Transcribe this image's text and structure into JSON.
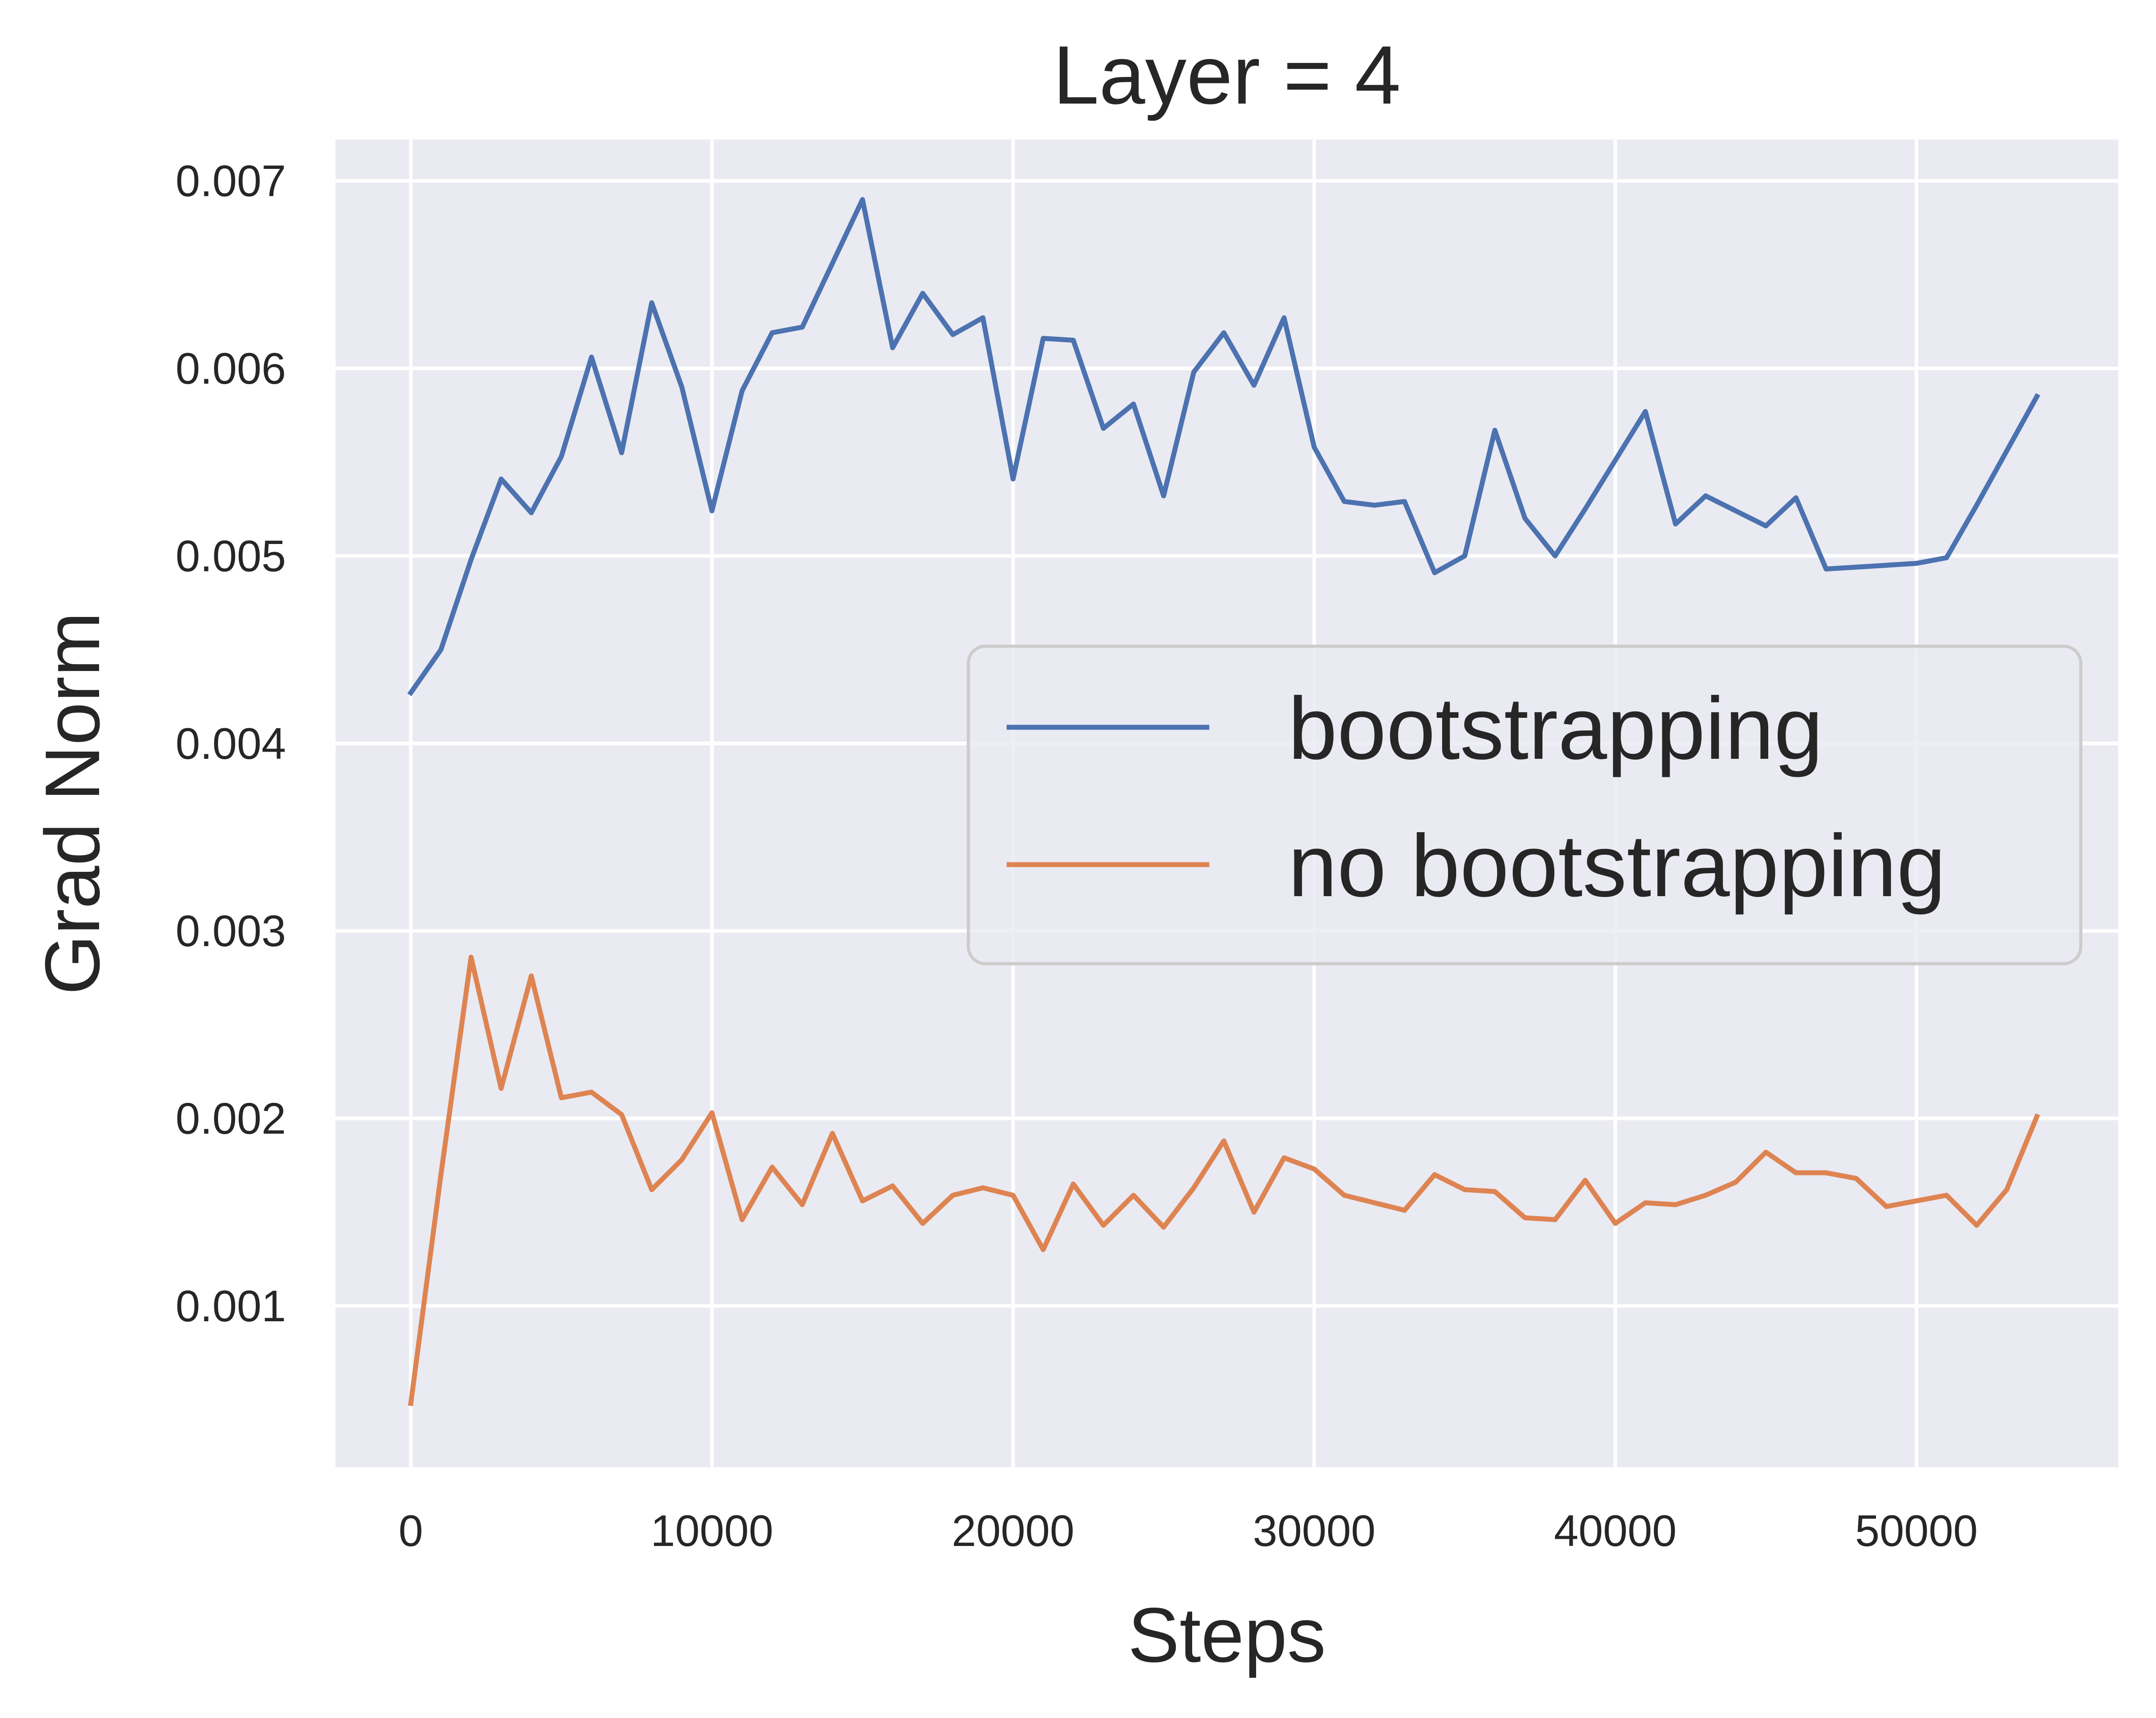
{
  "chart_data": {
    "type": "line",
    "title": "Layer = 4",
    "xlabel": "Steps",
    "ylabel": "Grad Norm",
    "xlim": [
      -2500,
      56700
    ],
    "ylim": [
      0.00014,
      0.00722
    ],
    "xticks": [
      0,
      10000,
      20000,
      30000,
      40000,
      50000
    ],
    "xtick_labels": [
      "0",
      "10000",
      "20000",
      "30000",
      "40000",
      "50000"
    ],
    "yticks": [
      0.001,
      0.002,
      0.003,
      0.004,
      0.005,
      0.006,
      0.007
    ],
    "ytick_labels": [
      "0.001",
      "0.002",
      "0.003",
      "0.004",
      "0.005",
      "0.006",
      "0.007"
    ],
    "grid": true,
    "legend_position": "center-right",
    "colors": {
      "background": "#eaeaf2",
      "grid": "#ffffff",
      "text": "#262626"
    },
    "x": [
      0,
      1000,
      2000,
      3000,
      4000,
      5000,
      6000,
      7000,
      8000,
      9000,
      10000,
      11000,
      12000,
      13000,
      14000,
      15000,
      16000,
      17000,
      18000,
      19000,
      20000,
      21000,
      22000,
      23000,
      24000,
      25000,
      26000,
      27000,
      28000,
      29000,
      30000,
      31000,
      32000,
      33000,
      34000,
      35000,
      36000,
      37000,
      38000,
      39000,
      40000,
      41000,
      42000,
      43000,
      44000,
      45000,
      46000,
      47000,
      48000,
      49000,
      50000,
      51000,
      52000,
      53000,
      54000
    ],
    "series": [
      {
        "name": "bootstrapping",
        "color": "#4c72b0",
        "values": [
          0.00427,
          0.0045,
          0.00498,
          0.00541,
          0.00523,
          0.00553,
          0.00606,
          0.00555,
          0.00635,
          0.0059,
          0.00524,
          0.00588,
          0.00619,
          0.00622,
          0.00656,
          0.0069,
          0.00611,
          0.0064,
          0.00618,
          0.00627,
          0.00541,
          0.00616,
          0.00615,
          0.00568,
          0.00581,
          0.00532,
          0.00598,
          0.00619,
          0.00591,
          0.00627,
          0.00558,
          0.00529,
          0.00527,
          0.00529,
          0.00491,
          0.005,
          0.00567,
          0.0052,
          0.005,
          0.00525,
          0.00551,
          0.00577,
          0.00517,
          0.00532,
          0.00524,
          0.00516,
          0.00531,
          0.00493,
          0.00494,
          0.00495,
          0.00496,
          0.00499,
          0.00527,
          0.00556,
          0.00585
        ]
      },
      {
        "name": "no bootstrapping",
        "color": "#dd8452",
        "values": [
          0.00048,
          0.0017,
          0.00286,
          0.00216,
          0.00276,
          0.00211,
          0.00214,
          0.00202,
          0.00162,
          0.00178,
          0.00203,
          0.00146,
          0.00174,
          0.00154,
          0.00192,
          0.00156,
          0.00164,
          0.00144,
          0.00159,
          0.00163,
          0.00159,
          0.0013,
          0.00165,
          0.00143,
          0.00159,
          0.00142,
          0.00163,
          0.00188,
          0.0015,
          0.00179,
          0.00173,
          0.00159,
          0.00155,
          0.00151,
          0.0017,
          0.00162,
          0.00161,
          0.00147,
          0.00146,
          0.00167,
          0.00144,
          0.00155,
          0.00154,
          0.00159,
          0.00166,
          0.00182,
          0.00171,
          0.00171,
          0.00168,
          0.00153,
          0.00156,
          0.00159,
          0.00143,
          0.00162,
          0.00201
        ]
      }
    ]
  }
}
